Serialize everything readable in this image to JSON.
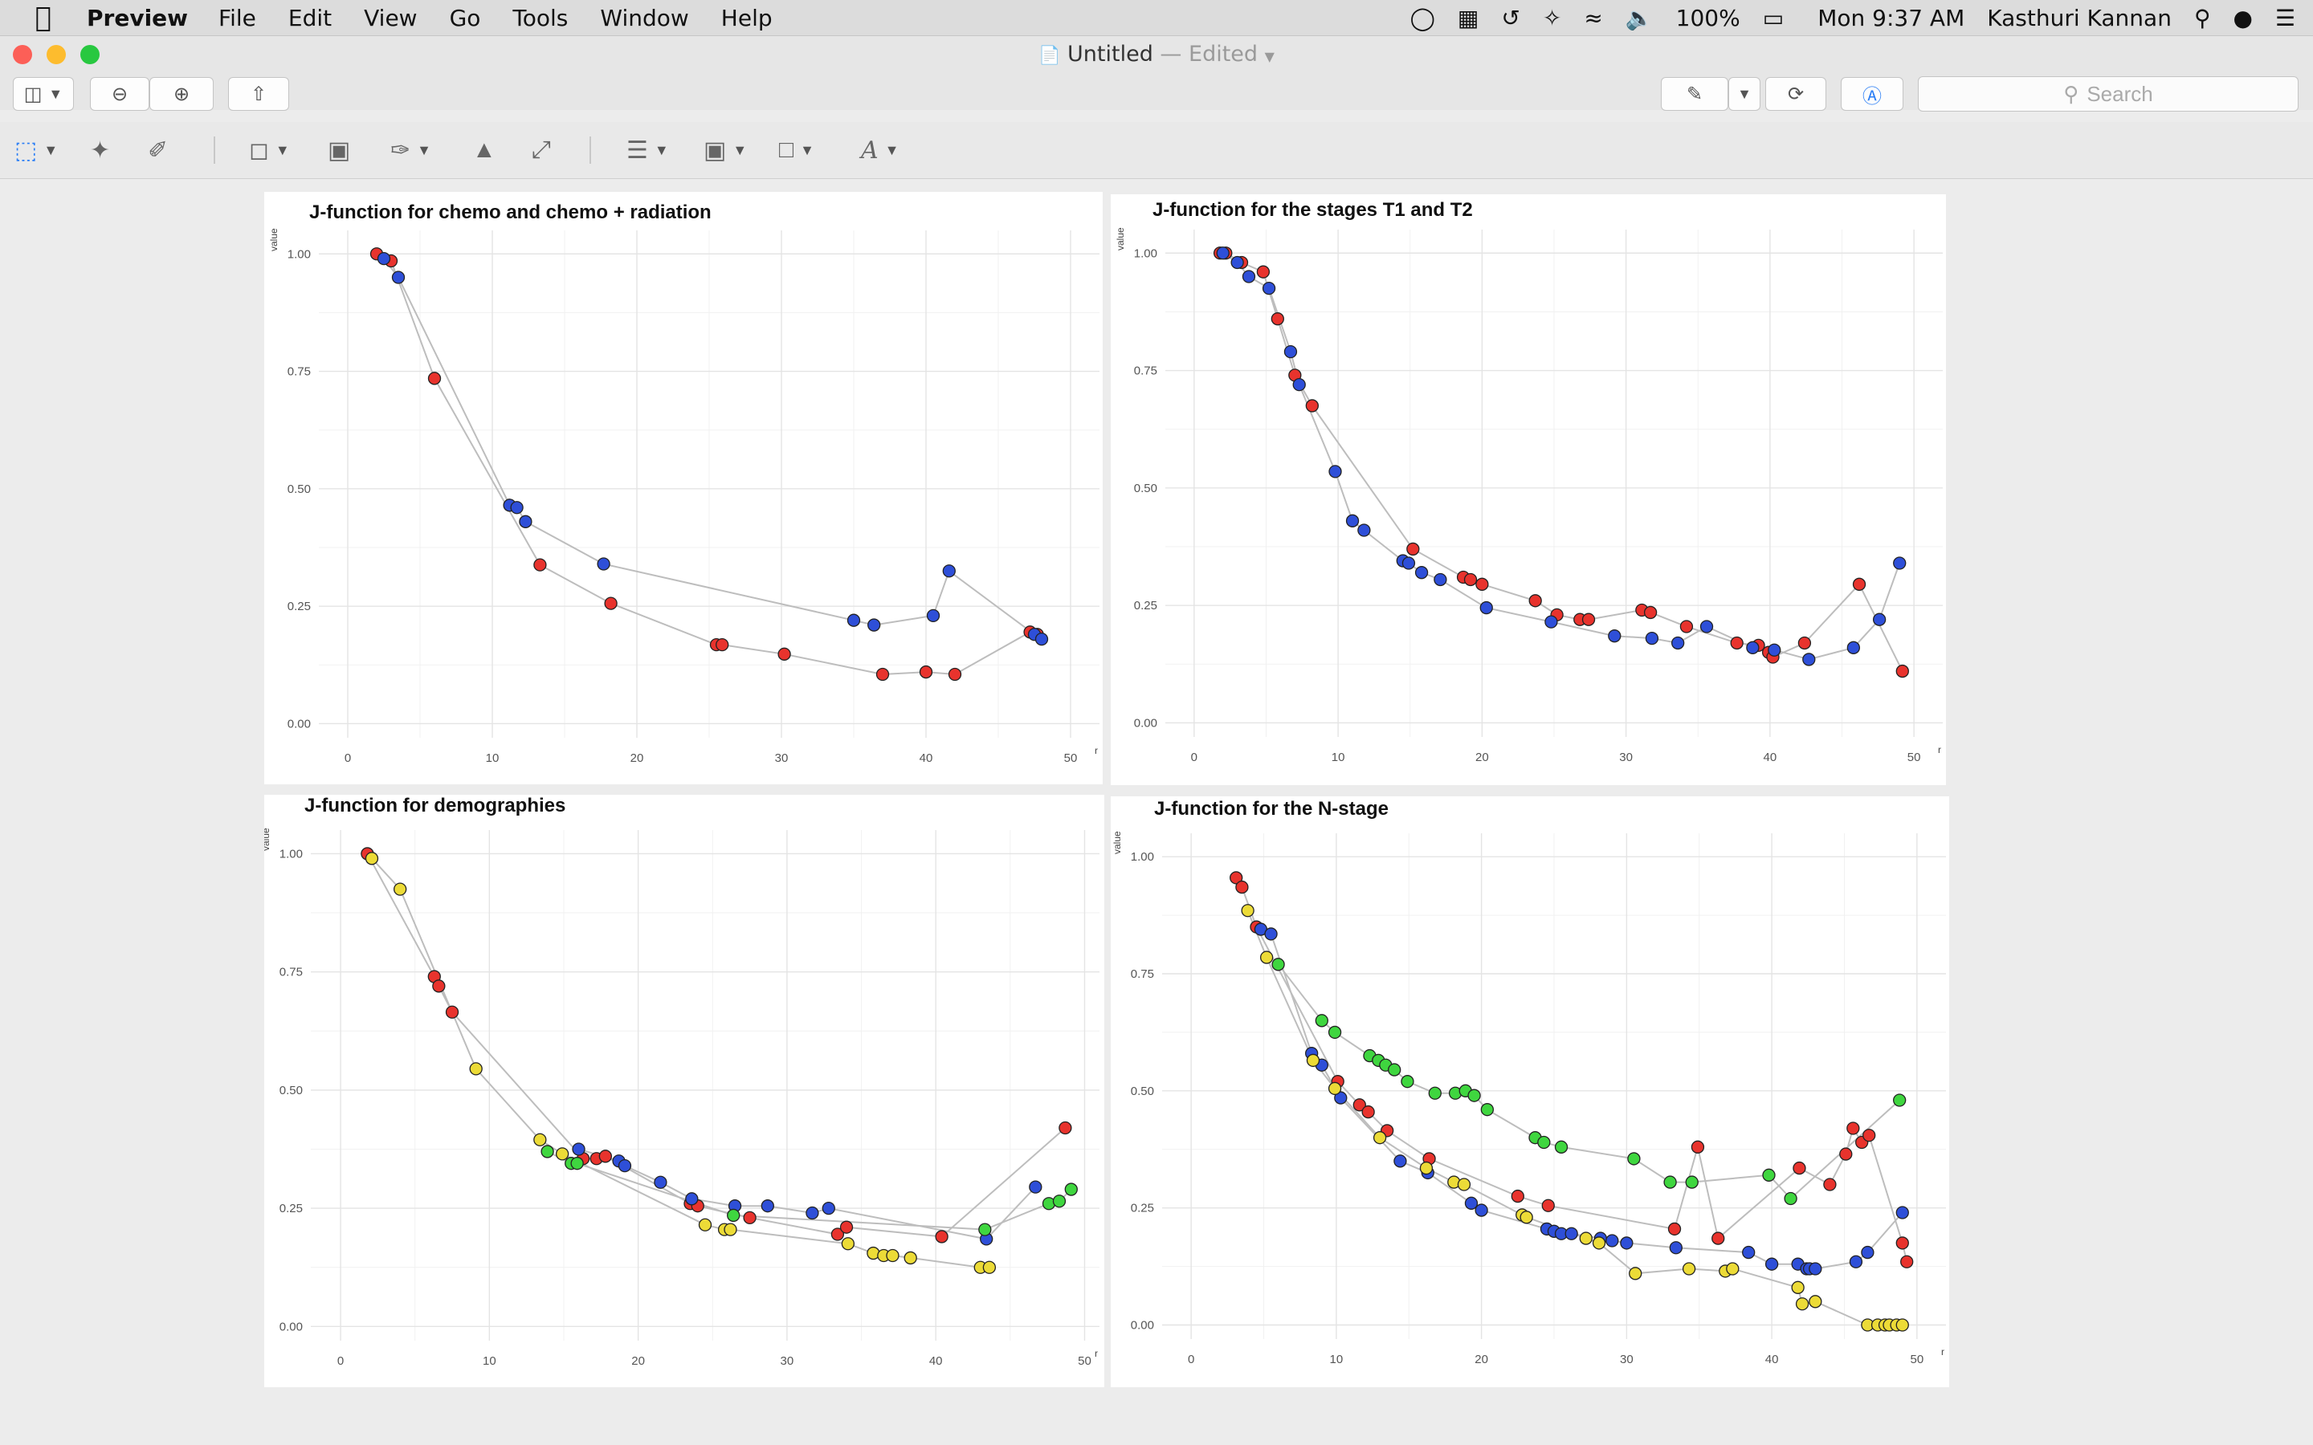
{
  "menubar": {
    "app_name": "Preview",
    "menus": [
      "File",
      "Edit",
      "View",
      "Go",
      "Tools",
      "Window",
      "Help"
    ],
    "battery": "100%",
    "clock": "Mon 9:37 AM",
    "user": "Kasthuri Kannan"
  },
  "window": {
    "title": "Untitled",
    "status": " — Edited",
    "search_placeholder": "Search"
  },
  "chart_data": [
    {
      "type": "line",
      "title": "J-function for chemo and chemo + radiation",
      "xlabel": "r",
      "ylabel": "value",
      "xlim": [
        -2,
        52
      ],
      "ylim": [
        -0.03,
        1.05
      ],
      "xticks": [
        0,
        10,
        20,
        30,
        40,
        50
      ],
      "yticks": [
        0,
        0.25,
        0.5,
        0.75,
        1.0
      ],
      "ytick_labels": [
        "0.00",
        "0.25",
        "0.50",
        "0.75",
        "1.00"
      ],
      "series": [
        {
          "color": "#e8332d",
          "x": [
            2.0,
            3.0,
            6.0,
            13.3,
            18.2,
            25.5,
            25.9,
            30.2,
            37.0,
            40.0,
            42.0,
            47.2,
            47.7
          ],
          "y": [
            1.0,
            0.985,
            0.735,
            0.338,
            0.256,
            0.168,
            0.168,
            0.148,
            0.105,
            0.11,
            0.105,
            0.195,
            0.19
          ]
        },
        {
          "color": "#2e4fd8",
          "x": [
            2.5,
            3.5,
            11.2,
            11.7,
            12.3,
            17.7,
            35.0,
            36.4,
            40.5,
            41.6,
            47.5,
            48.0
          ],
          "y": [
            0.99,
            0.95,
            0.465,
            0.46,
            0.43,
            0.34,
            0.22,
            0.21,
            0.23,
            0.325,
            0.19,
            0.18
          ]
        }
      ]
    },
    {
      "type": "line",
      "title": "J-function for the stages T1 and T2",
      "xlabel": "r",
      "ylabel": "value",
      "xlim": [
        -2,
        52
      ],
      "ylim": [
        -0.03,
        1.05
      ],
      "xticks": [
        0,
        10,
        20,
        30,
        40,
        50
      ],
      "yticks": [
        0,
        0.25,
        0.5,
        0.75,
        1.0
      ],
      "ytick_labels": [
        "0.00",
        "0.25",
        "0.50",
        "0.75",
        "1.00"
      ],
      "series": [
        {
          "color": "#e8332d",
          "x": [
            1.8,
            2.2,
            3.3,
            4.8,
            5.8,
            7.0,
            8.2,
            15.2,
            18.7,
            19.2,
            20.0,
            23.7,
            25.2,
            26.8,
            27.4,
            31.1,
            31.7,
            34.2,
            37.7,
            39.2,
            39.9,
            40.2,
            42.4,
            46.2,
            49.2
          ],
          "y": [
            1.0,
            1.0,
            0.98,
            0.96,
            0.86,
            0.74,
            0.675,
            0.37,
            0.31,
            0.305,
            0.295,
            0.26,
            0.23,
            0.22,
            0.22,
            0.24,
            0.235,
            0.205,
            0.17,
            0.165,
            0.15,
            0.14,
            0.17,
            0.295,
            0.11
          ]
        },
        {
          "color": "#2e4fd8",
          "x": [
            2.0,
            3.0,
            3.8,
            5.2,
            6.7,
            7.3,
            9.8,
            11.0,
            11.8,
            14.5,
            14.9,
            15.8,
            17.1,
            20.3,
            24.8,
            29.2,
            31.8,
            33.6,
            35.6,
            38.8,
            40.3,
            42.7,
            45.8,
            47.6,
            49.0
          ],
          "y": [
            1.0,
            0.98,
            0.95,
            0.925,
            0.79,
            0.72,
            0.535,
            0.43,
            0.41,
            0.345,
            0.34,
            0.32,
            0.305,
            0.245,
            0.215,
            0.185,
            0.18,
            0.17,
            0.205,
            0.16,
            0.155,
            0.135,
            0.16,
            0.22,
            0.34
          ]
        }
      ]
    },
    {
      "type": "line",
      "title": "J-function for demographies",
      "xlabel": "r",
      "ylabel": "value",
      "xlim": [
        -2,
        51
      ],
      "ylim": [
        -0.03,
        1.05
      ],
      "xticks": [
        0,
        10,
        20,
        30,
        40,
        50
      ],
      "yticks": [
        0,
        0.25,
        0.5,
        0.75,
        1.0
      ],
      "ytick_labels": [
        "0.00",
        "0.25",
        "0.50",
        "0.75",
        "1.00"
      ],
      "series": [
        {
          "color": "#e8332d",
          "x": [
            1.8,
            6.3,
            6.6,
            7.5,
            16.3,
            17.2,
            17.8,
            23.5,
            24.0,
            27.5,
            33.4,
            34.0,
            40.4,
            48.7
          ],
          "y": [
            1.0,
            0.74,
            0.72,
            0.665,
            0.355,
            0.355,
            0.36,
            0.26,
            0.255,
            0.23,
            0.195,
            0.21,
            0.19,
            0.42
          ]
        },
        {
          "color": "#2e4fd8",
          "x": [
            16.0,
            18.7,
            19.1,
            21.5,
            23.6,
            26.5,
            28.7,
            31.7,
            32.8,
            43.4,
            46.7
          ],
          "y": [
            0.375,
            0.35,
            0.34,
            0.305,
            0.27,
            0.255,
            0.255,
            0.24,
            0.25,
            0.185,
            0.295
          ]
        },
        {
          "color": "#3fd63f",
          "x": [
            13.9,
            15.5,
            15.9,
            26.4,
            43.3,
            47.6,
            48.3,
            49.1
          ],
          "y": [
            0.37,
            0.345,
            0.345,
            0.235,
            0.205,
            0.26,
            0.265,
            0.29
          ]
        },
        {
          "color": "#ecdb37",
          "x": [
            2.1,
            4.0,
            9.1,
            13.4,
            14.9,
            24.5,
            25.8,
            26.2,
            34.1,
            35.8,
            36.5,
            37.1,
            38.3,
            43.0,
            43.6
          ],
          "y": [
            0.99,
            0.925,
            0.545,
            0.395,
            0.365,
            0.215,
            0.205,
            0.205,
            0.175,
            0.155,
            0.15,
            0.15,
            0.145,
            0.125,
            0.125
          ]
        }
      ]
    },
    {
      "type": "line",
      "title": "J-function for the N-stage",
      "xlabel": "r",
      "ylabel": "value",
      "xlim": [
        -2,
        52
      ],
      "ylim": [
        -0.03,
        1.05
      ],
      "xticks": [
        0,
        10,
        20,
        30,
        40,
        50
      ],
      "yticks": [
        0,
        0.25,
        0.5,
        0.75,
        1.0
      ],
      "ytick_labels": [
        "0.00",
        "0.25",
        "0.50",
        "0.75",
        "1.00"
      ],
      "series": [
        {
          "color": "#e8332d",
          "x": [
            3.1,
            3.5,
            4.5,
            10.1,
            11.6,
            12.2,
            13.5,
            16.4,
            22.5,
            24.6,
            33.3,
            34.9,
            36.3,
            41.9,
            44.0,
            45.1,
            45.6,
            46.2,
            46.7,
            49.0,
            49.3
          ],
          "y": [
            0.955,
            0.935,
            0.85,
            0.52,
            0.47,
            0.455,
            0.415,
            0.355,
            0.275,
            0.255,
            0.205,
            0.38,
            0.185,
            0.335,
            0.3,
            0.365,
            0.42,
            0.39,
            0.405,
            0.175,
            0.135
          ]
        },
        {
          "color": "#2e4fd8",
          "x": [
            4.8,
            5.5,
            8.3,
            9.0,
            10.3,
            14.4,
            16.3,
            19.3,
            20.0,
            24.5,
            25.0,
            25.5,
            26.2,
            28.2,
            29.0,
            30.0,
            33.4,
            38.4,
            40.0,
            41.8,
            42.4,
            42.6,
            43.0,
            45.8,
            46.6,
            49.0
          ],
          "y": [
            0.845,
            0.835,
            0.58,
            0.555,
            0.485,
            0.35,
            0.325,
            0.26,
            0.245,
            0.205,
            0.2,
            0.195,
            0.195,
            0.185,
            0.18,
            0.175,
            0.165,
            0.155,
            0.13,
            0.13,
            0.12,
            0.12,
            0.12,
            0.135,
            0.155,
            0.24
          ]
        },
        {
          "color": "#3fd63f",
          "x": [
            6.0,
            9.0,
            9.9,
            12.3,
            12.9,
            13.4,
            14.0,
            14.9,
            16.8,
            18.2,
            18.9,
            19.5,
            20.4,
            23.7,
            24.3,
            25.5,
            30.5,
            33.0,
            34.5,
            39.8,
            41.3,
            48.8
          ],
          "y": [
            0.77,
            0.65,
            0.625,
            0.575,
            0.565,
            0.555,
            0.545,
            0.52,
            0.495,
            0.495,
            0.5,
            0.49,
            0.46,
            0.4,
            0.39,
            0.38,
            0.355,
            0.305,
            0.305,
            0.32,
            0.27,
            0.48
          ]
        },
        {
          "color": "#ecdb37",
          "x": [
            3.9,
            5.2,
            8.4,
            9.9,
            13.0,
            16.2,
            18.1,
            18.8,
            22.8,
            23.1,
            27.2,
            28.1,
            30.6,
            34.3,
            36.8,
            37.3,
            41.8,
            42.1,
            43.0,
            46.6,
            47.3,
            47.8,
            48.1,
            48.6,
            49.0
          ],
          "y": [
            0.885,
            0.785,
            0.565,
            0.505,
            0.4,
            0.335,
            0.305,
            0.3,
            0.235,
            0.23,
            0.185,
            0.175,
            0.11,
            0.12,
            0.115,
            0.12,
            0.08,
            0.045,
            0.05,
            0.0,
            0.0,
            0.0,
            0.0,
            0.0,
            0.0
          ]
        }
      ]
    }
  ]
}
